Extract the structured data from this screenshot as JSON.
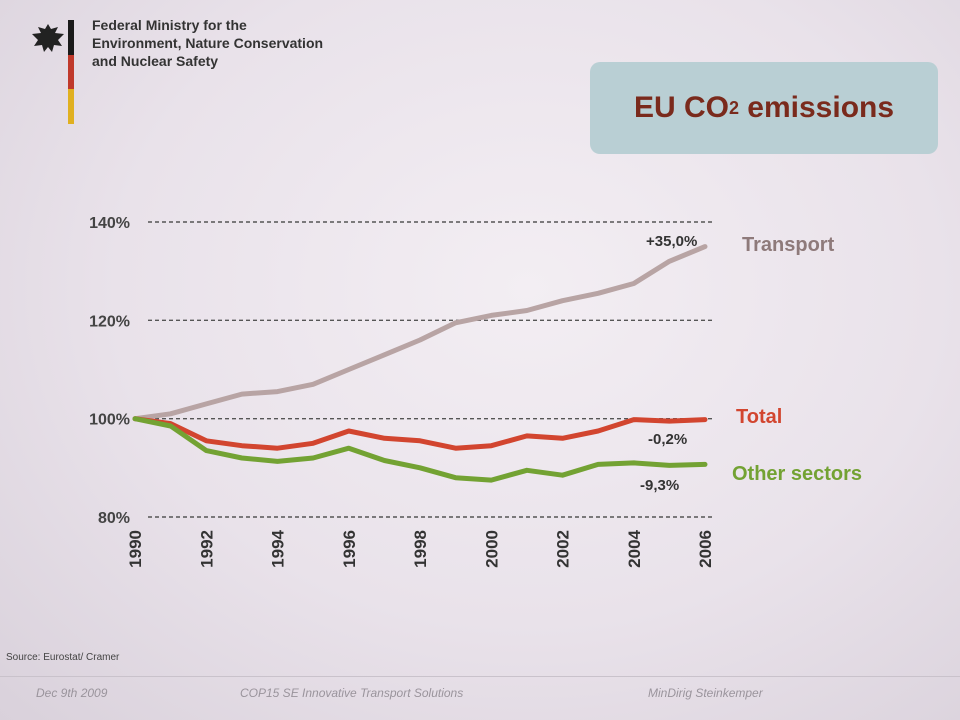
{
  "header": {
    "ministry_lines": [
      "Federal Ministry for the",
      "Environment, Nature Conservation",
      "and Nuclear Safety"
    ]
  },
  "title": {
    "main": "EU CO",
    "sub": "2",
    "rest": " emissions"
  },
  "colors": {
    "transport": "#b8a4a4",
    "total": "#d2452f",
    "other": "#73a233",
    "flag_black": "#1a1a1a",
    "flag_red": "#c0392b",
    "flag_gold": "#e0b020"
  },
  "chart_data": {
    "type": "line",
    "x": [
      1990,
      1991,
      1992,
      1993,
      1994,
      1995,
      1996,
      1997,
      1998,
      1999,
      2000,
      2001,
      2002,
      2003,
      2004,
      2005,
      2006
    ],
    "xticks": [
      "1990",
      "1992",
      "1994",
      "1996",
      "1998",
      "2000",
      "2002",
      "2004",
      "2006"
    ],
    "yticks": [
      "80%",
      "100%",
      "120%",
      "140%"
    ],
    "ytick_values": [
      80,
      100,
      120,
      140
    ],
    "ylim": [
      80,
      140
    ],
    "xlim": [
      1990,
      2006
    ],
    "grid": "dashed horizontal",
    "series": [
      {
        "name": "Transport",
        "key": "transport",
        "values": [
          100,
          101,
          103,
          105,
          105.5,
          107,
          110,
          113,
          116,
          119.5,
          121,
          122,
          124,
          125.5,
          127.5,
          132,
          135
        ],
        "annotation": "+35,0%"
      },
      {
        "name": "Total",
        "key": "total",
        "values": [
          100,
          99,
          95.5,
          94.5,
          94,
          95,
          97.5,
          96,
          95.5,
          94,
          94.5,
          96.5,
          96,
          97.5,
          99.8,
          99.5,
          99.8
        ],
        "annotation": "-0,2%"
      },
      {
        "name": "Other sectors",
        "key": "other",
        "values": [
          100,
          98.5,
          93.5,
          92,
          91.3,
          92,
          94,
          91.5,
          90,
          88,
          87.5,
          89.5,
          88.5,
          90.7,
          91,
          90.5,
          90.7
        ],
        "annotation": "-9,3%"
      }
    ]
  },
  "source": "Source: Eurostat/ Cramer",
  "footer": {
    "date": "Dec 9th 2009",
    "event": "COP15 SE Innovative Transport Solutions",
    "author": "MinDirig Steinkemper"
  }
}
